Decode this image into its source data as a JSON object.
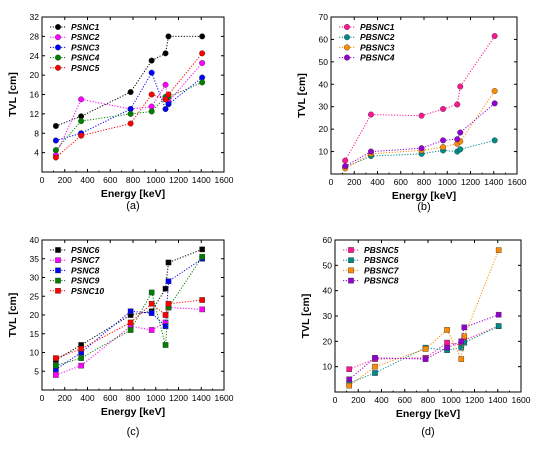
{
  "chart_data": [
    {
      "type": "scatter",
      "panel_label": "(a)",
      "xlabel": "Energy [keV]",
      "ylabel": "TVL [cm]",
      "xlim": [
        0,
        1600
      ],
      "ylim": [
        0,
        32
      ],
      "xticks": [
        0,
        200,
        400,
        600,
        800,
        1000,
        1200,
        1400,
        1600
      ],
      "yticks": [
        4,
        8,
        12,
        16,
        20,
        24,
        28,
        32
      ],
      "legend_position": "top-left",
      "line_style": "dotted, markers connected",
      "series": [
        {
          "name": "PSNC1",
          "color": "#000000",
          "marker": "circle",
          "x": [
            122,
            344,
            779,
            964,
            1086,
            1112,
            1408
          ],
          "y": [
            9.5,
            11.5,
            16.5,
            23.0,
            24.5,
            28.0,
            28.0
          ]
        },
        {
          "name": "PSNC2",
          "color": "#ff00ff",
          "marker": "circle",
          "x": [
            122,
            344,
            779,
            964,
            1086,
            1112,
            1408
          ],
          "y": [
            3.5,
            15.0,
            13.0,
            13.5,
            18.0,
            14.5,
            22.5
          ]
        },
        {
          "name": "PSNC3",
          "color": "#0000ff",
          "marker": "circle",
          "x": [
            122,
            344,
            779,
            964,
            1086,
            1112,
            1408
          ],
          "y": [
            6.5,
            8.0,
            13.0,
            20.5,
            13.0,
            14.0,
            19.5
          ]
        },
        {
          "name": "PSNC4",
          "color": "#008000",
          "marker": "circle",
          "x": [
            122,
            344,
            779,
            964,
            1086,
            1112,
            1408
          ],
          "y": [
            4.5,
            10.5,
            12.0,
            12.5,
            15.5,
            15.5,
            18.5
          ]
        },
        {
          "name": "PSNC5",
          "color": "#ff0000",
          "marker": "circle",
          "x": [
            122,
            344,
            779,
            964,
            1086,
            1112,
            1408
          ],
          "y": [
            3.0,
            7.5,
            10.0,
            16.0,
            15.0,
            16.0,
            24.5
          ]
        }
      ]
    },
    {
      "type": "scatter",
      "panel_label": "(b)",
      "xlabel": "Energy [keV]",
      "ylabel": "TVL [cm]",
      "xlim": [
        0,
        1600
      ],
      "ylim": [
        0,
        70
      ],
      "xticks": [
        0,
        200,
        400,
        600,
        800,
        1000,
        1200,
        1400,
        1600
      ],
      "yticks": [
        10,
        20,
        30,
        40,
        50,
        60,
        70
      ],
      "legend_position": "top-left",
      "line_style": "dotted, markers connected",
      "series": [
        {
          "name": "PBSNC1",
          "color": "#ff1493",
          "marker": "circle",
          "x": [
            122,
            344,
            779,
            964,
            1086,
            1112,
            1408
          ],
          "y": [
            6.0,
            26.5,
            26.0,
            29.0,
            31.0,
            39.0,
            61.5
          ]
        },
        {
          "name": "PBSNC2",
          "color": "#008b8b",
          "marker": "circle",
          "x": [
            122,
            344,
            779,
            964,
            1086,
            1112,
            1408
          ],
          "y": [
            3.0,
            8.0,
            9.0,
            10.5,
            10.0,
            11.0,
            15.0
          ]
        },
        {
          "name": "PBSNC3",
          "color": "#ff8c00",
          "marker": "circle",
          "x": [
            122,
            344,
            779,
            964,
            1086,
            1112,
            1408
          ],
          "y": [
            2.5,
            9.0,
            10.5,
            12.0,
            13.5,
            14.5,
            37.0
          ]
        },
        {
          "name": "PBSNC4",
          "color": "#9400d3",
          "marker": "circle",
          "x": [
            122,
            344,
            779,
            964,
            1086,
            1112,
            1408
          ],
          "y": [
            3.5,
            10.0,
            11.5,
            15.0,
            15.5,
            18.5,
            31.5
          ]
        }
      ]
    },
    {
      "type": "scatter",
      "panel_label": "(c)",
      "xlabel": "Energy [keV]",
      "ylabel": "TVL [cm]",
      "xlim": [
        0,
        1600
      ],
      "ylim": [
        0,
        40
      ],
      "xticks": [
        0,
        200,
        400,
        600,
        800,
        1000,
        1200,
        1400,
        1600
      ],
      "yticks": [
        5,
        10,
        15,
        20,
        25,
        30,
        35,
        40
      ],
      "legend_position": "top-left",
      "line_style": "dotted, markers connected",
      "series": [
        {
          "name": "PSNC6",
          "color": "#000000",
          "marker": "square",
          "x": [
            122,
            344,
            779,
            964,
            1086,
            1112,
            1408
          ],
          "y": [
            8.0,
            12.0,
            20.0,
            21.0,
            27.0,
            34.0,
            37.5
          ]
        },
        {
          "name": "PSNC7",
          "color": "#ff00ff",
          "marker": "square",
          "x": [
            122,
            344,
            779,
            964,
            1086,
            1112,
            1408
          ],
          "y": [
            4.0,
            6.5,
            17.0,
            16.0,
            18.0,
            22.0,
            21.5
          ]
        },
        {
          "name": "PSNC8",
          "color": "#0000ff",
          "marker": "square",
          "x": [
            122,
            344,
            779,
            964,
            1086,
            1112,
            1408
          ],
          "y": [
            5.5,
            10.0,
            21.0,
            20.5,
            17.0,
            29.0,
            35.0
          ]
        },
        {
          "name": "PSNC9",
          "color": "#008000",
          "marker": "square",
          "x": [
            122,
            344,
            779,
            964,
            1086,
            1112,
            1408
          ],
          "y": [
            6.5,
            8.5,
            16.0,
            26.0,
            12.0,
            22.0,
            35.5
          ]
        },
        {
          "name": "PSNC10",
          "color": "#ff0000",
          "marker": "square",
          "x": [
            122,
            344,
            779,
            964,
            1086,
            1112,
            1408
          ],
          "y": [
            8.5,
            11.0,
            18.0,
            23.0,
            20.0,
            23.0,
            24.0
          ]
        }
      ]
    },
    {
      "type": "scatter",
      "panel_label": "(d)",
      "xlabel": "Energy [keV]",
      "ylabel": "TVL [cm]",
      "xlim": [
        0,
        1600
      ],
      "ylim": [
        0,
        60
      ],
      "xticks": [
        0,
        200,
        400,
        600,
        800,
        1000,
        1200,
        1400,
        1600
      ],
      "yticks": [
        10,
        20,
        30,
        40,
        50,
        60
      ],
      "legend_position": "top-left",
      "line_style": "dotted, markers connected",
      "series": [
        {
          "name": "PBSNC5",
          "color": "#ff1493",
          "marker": "square",
          "x": [
            122,
            344,
            779,
            964,
            1086,
            1112,
            1408
          ],
          "y": [
            9.0,
            13.0,
            13.5,
            19.5,
            18.5,
            20.5,
            26.0
          ]
        },
        {
          "name": "PBSNC6",
          "color": "#008b8b",
          "marker": "square",
          "x": [
            122,
            344,
            779,
            964,
            1086,
            1112,
            1408
          ],
          "y": [
            3.5,
            7.5,
            17.5,
            16.5,
            17.5,
            19.5,
            26.0
          ]
        },
        {
          "name": "PBSNC7",
          "color": "#ff8c00",
          "marker": "square",
          "x": [
            122,
            344,
            779,
            964,
            1086,
            1112,
            1408
          ],
          "y": [
            2.5,
            10.0,
            17.0,
            24.5,
            13.0,
            22.0,
            56.0
          ]
        },
        {
          "name": "PBSNC8",
          "color": "#9400d3",
          "marker": "square",
          "x": [
            122,
            344,
            779,
            964,
            1086,
            1112,
            1408
          ],
          "y": [
            5.0,
            13.5,
            13.0,
            17.5,
            20.0,
            25.5,
            30.5
          ]
        }
      ]
    }
  ]
}
